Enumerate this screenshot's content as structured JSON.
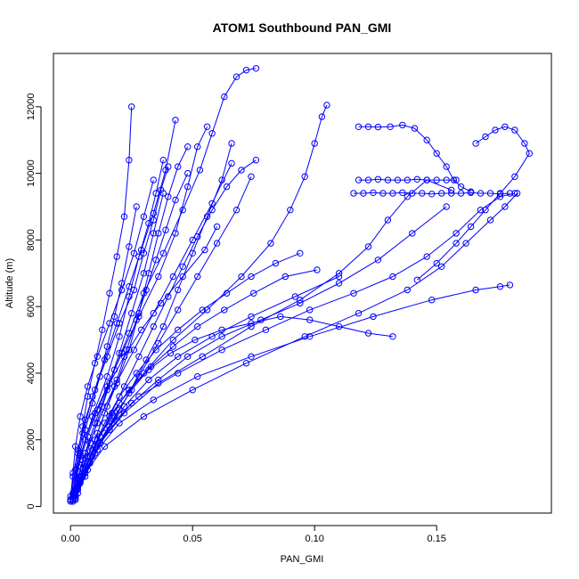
{
  "chart_data": {
    "type": "scatter",
    "title": "ATOM1 Southbound PAN_GMI",
    "xlabel": "PAN_GMI",
    "ylabel": "Altitude (m)",
    "xlim": [
      -0.007,
      0.197
    ],
    "ylim": [
      -200,
      13600
    ],
    "xticks": [
      0.0,
      0.05,
      0.1,
      0.15
    ],
    "xtick_labels": [
      "0.00",
      "0.05",
      "0.10",
      "0.15"
    ],
    "yticks": [
      0,
      2000,
      4000,
      6000,
      8000,
      10000,
      12000
    ],
    "ytick_labels": [
      "0",
      "2000",
      "4000",
      "6000",
      "8000",
      "10000",
      "12000"
    ],
    "grid": false,
    "color": "#0000ff",
    "marker": "open-circle",
    "series": [
      {
        "x": [
          0.0,
          0.002,
          0.003,
          0.005,
          0.007,
          0.01,
          0.013,
          0.016,
          0.019,
          0.022,
          0.024,
          0.025
        ],
        "y": [
          200,
          800,
          1600,
          2400,
          3300,
          4300,
          5300,
          6400,
          7500,
          8700,
          10400,
          12000
        ]
      },
      {
        "x": [
          0.001,
          0.003,
          0.006,
          0.01,
          0.015,
          0.021,
          0.028,
          0.036,
          0.043,
          0.048,
          0.052,
          0.056
        ],
        "y": [
          300,
          1200,
          2000,
          2800,
          3600,
          4600,
          5700,
          6900,
          8200,
          9600,
          10800,
          11400
        ]
      },
      {
        "x": [
          0.001,
          0.004,
          0.008,
          0.013,
          0.018,
          0.024,
          0.03,
          0.038,
          0.046,
          0.053,
          0.058,
          0.063,
          0.068,
          0.072,
          0.076
        ],
        "y": [
          200,
          900,
          1900,
          3000,
          4100,
          5200,
          6400,
          7600,
          8900,
          10100,
          11200,
          12300,
          12900,
          13100,
          13150
        ]
      },
      {
        "x": [
          0.002,
          0.006,
          0.012,
          0.02,
          0.03,
          0.042,
          0.056,
          0.07,
          0.082,
          0.09,
          0.096,
          0.1,
          0.103,
          0.105
        ],
        "y": [
          300,
          1100,
          2100,
          3100,
          4000,
          5000,
          5900,
          6900,
          7900,
          8900,
          9900,
          10900,
          11700,
          12050
        ]
      },
      {
        "x": [
          0.002,
          0.008,
          0.016,
          0.028,
          0.044,
          0.062,
          0.08,
          0.098,
          0.116,
          0.132,
          0.146,
          0.158,
          0.168,
          0.176,
          0.182
        ],
        "y": [
          500,
          1500,
          2400,
          3300,
          4000,
          4700,
          5300,
          5900,
          6400,
          6900,
          7500,
          8200,
          8900,
          9300,
          9400
        ]
      },
      {
        "x": [
          0.003,
          0.01,
          0.02,
          0.034,
          0.052,
          0.074,
          0.098,
          0.124,
          0.148,
          0.166,
          0.176,
          0.18
        ],
        "y": [
          600,
          1600,
          2500,
          3200,
          3900,
          4500,
          5100,
          5700,
          6200,
          6500,
          6600,
          6650
        ]
      },
      {
        "x": [
          0.004,
          0.014,
          0.03,
          0.05,
          0.072,
          0.096,
          0.118,
          0.138,
          0.152,
          0.162,
          0.172,
          0.178,
          0.183
        ],
        "y": [
          800,
          1800,
          2700,
          3500,
          4300,
          5100,
          5800,
          6500,
          7200,
          7900,
          8600,
          9000,
          9400
        ]
      },
      {
        "x": [
          0.005,
          0.012,
          0.022,
          0.036,
          0.054,
          0.074,
          0.094,
          0.11,
          0.122,
          0.13,
          0.138,
          0.146,
          0.156
        ],
        "y": [
          900,
          1900,
          2800,
          3700,
          4500,
          5400,
          6200,
          7000,
          7800,
          8600,
          9300,
          9800,
          9500
        ]
      },
      {
        "x": [
          0.116,
          0.12,
          0.124,
          0.128,
          0.132,
          0.136,
          0.14,
          0.144,
          0.148,
          0.152,
          0.156,
          0.16,
          0.164,
          0.168,
          0.172,
          0.176,
          0.18
        ],
        "y": [
          9400,
          9400,
          9420,
          9400,
          9400,
          9420,
          9400,
          9400,
          9380,
          9400,
          9400,
          9400,
          9420,
          9400,
          9400,
          9380,
          9400
        ]
      },
      {
        "x": [
          0.118,
          0.122,
          0.126,
          0.13,
          0.134,
          0.138,
          0.142,
          0.146,
          0.15,
          0.154,
          0.158
        ],
        "y": [
          9800,
          9800,
          9820,
          9800,
          9800,
          9800,
          9820,
          9800,
          9800,
          9800,
          9800
        ]
      },
      {
        "x": [
          0.118,
          0.122,
          0.126,
          0.131,
          0.136,
          0.141,
          0.146,
          0.15,
          0.154,
          0.157,
          0.16,
          0.164
        ],
        "y": [
          11400,
          11400,
          11390,
          11400,
          11450,
          11350,
          11000,
          10600,
          10200,
          9800,
          9600,
          9450
        ]
      },
      {
        "x": [
          0.166,
          0.17,
          0.174,
          0.178,
          0.182,
          0.186,
          0.188,
          0.182,
          0.176,
          0.17,
          0.164,
          0.158,
          0.15,
          0.142
        ],
        "y": [
          10900,
          11100,
          11300,
          11400,
          11300,
          10900,
          10600,
          9900,
          9400,
          8900,
          8400,
          7900,
          7300,
          6800
        ]
      },
      {
        "x": [
          0.001,
          0.004,
          0.009,
          0.015,
          0.02,
          0.024,
          0.028,
          0.032,
          0.035,
          0.038
        ],
        "y": [
          400,
          1500,
          2700,
          3900,
          5100,
          6300,
          7500,
          8500,
          9400,
          10400
        ]
      },
      {
        "x": [
          0.0,
          0.002,
          0.005,
          0.009,
          0.014,
          0.019,
          0.024,
          0.029,
          0.034,
          0.039,
          0.043
        ],
        "y": [
          200,
          1100,
          2200,
          3300,
          4400,
          5500,
          6600,
          7700,
          8800,
          10100,
          11600
        ]
      },
      {
        "x": [
          0.001,
          0.005,
          0.011,
          0.018,
          0.026,
          0.034,
          0.042,
          0.05,
          0.058,
          0.066
        ],
        "y": [
          300,
          1400,
          2500,
          3600,
          4700,
          5800,
          6900,
          8000,
          9100,
          10300
        ]
      },
      {
        "x": [
          0.002,
          0.006,
          0.012,
          0.02,
          0.028,
          0.036,
          0.044,
          0.052,
          0.06,
          0.068,
          0.074
        ],
        "y": [
          250,
          1000,
          1900,
          2900,
          3900,
          4900,
          5900,
          6900,
          7900,
          8900,
          9900
        ]
      },
      {
        "x": [
          0.0,
          0.001,
          0.003,
          0.006,
          0.01,
          0.015,
          0.02,
          0.026,
          0.03,
          0.034,
          0.037,
          0.04
        ],
        "y": [
          300,
          900,
          1700,
          2600,
          3500,
          4500,
          5500,
          6500,
          7600,
          8600,
          9500,
          10200
        ]
      },
      {
        "x": [
          0.003,
          0.008,
          0.014,
          0.022,
          0.032,
          0.044,
          0.058,
          0.074,
          0.092,
          0.11
        ],
        "y": [
          500,
          1300,
          2200,
          3000,
          3800,
          4500,
          5100,
          5700,
          6300,
          6900
        ]
      },
      {
        "x": [
          0.002,
          0.006,
          0.011,
          0.017,
          0.024,
          0.031,
          0.038,
          0.044,
          0.05,
          0.056,
          0.062,
          0.066
        ],
        "y": [
          200,
          900,
          1700,
          2500,
          3400,
          4400,
          5400,
          6500,
          7600,
          8700,
          9800,
          10900
        ]
      },
      {
        "x": [
          0.001,
          0.003,
          0.006,
          0.01,
          0.015,
          0.02,
          0.025,
          0.03,
          0.034,
          0.038
        ],
        "y": [
          150,
          800,
          1600,
          2500,
          3500,
          4600,
          5800,
          7000,
          8200,
          9400
        ]
      },
      {
        "x": [
          0.004,
          0.009,
          0.016,
          0.025,
          0.036,
          0.048,
          0.062,
          0.078,
          0.094,
          0.11,
          0.126,
          0.14,
          0.154
        ],
        "y": [
          700,
          1500,
          2300,
          3100,
          3800,
          4500,
          5100,
          5600,
          6100,
          6700,
          7400,
          8200,
          9000
        ]
      },
      {
        "x": [
          0.0,
          0.001,
          0.002,
          0.004,
          0.007,
          0.011,
          0.016,
          0.021,
          0.026,
          0.03,
          0.034
        ],
        "y": [
          200,
          1000,
          1800,
          2700,
          3600,
          4500,
          5500,
          6500,
          7600,
          8700,
          9800
        ]
      },
      {
        "x": [
          0.005,
          0.01,
          0.016,
          0.022,
          0.028,
          0.034,
          0.04,
          0.046,
          0.052,
          0.058,
          0.064,
          0.07,
          0.076
        ],
        "y": [
          1000,
          1800,
          2700,
          3600,
          4500,
          5400,
          6300,
          7200,
          8100,
          8900,
          9600,
          10100,
          10400
        ]
      },
      {
        "x": [
          0.002,
          0.004,
          0.007,
          0.011,
          0.015,
          0.019,
          0.023,
          0.027,
          0.031,
          0.035,
          0.039,
          0.043,
          0.048
        ],
        "y": [
          300,
          900,
          1500,
          2200,
          3000,
          3800,
          4700,
          5600,
          6500,
          7400,
          8300,
          9200,
          10000
        ]
      },
      {
        "x": [
          0.001,
          0.002,
          0.004,
          0.006,
          0.009,
          0.012,
          0.015,
          0.018,
          0.021,
          0.024,
          0.027
        ],
        "y": [
          250,
          900,
          1600,
          2300,
          3100,
          3900,
          4800,
          5700,
          6700,
          7800,
          9000
        ]
      },
      {
        "x": [
          0.003,
          0.007,
          0.012,
          0.018,
          0.025,
          0.033,
          0.042,
          0.052,
          0.063,
          0.075,
          0.088,
          0.101
        ],
        "y": [
          400,
          1100,
          1900,
          2700,
          3500,
          4200,
          4800,
          5400,
          5900,
          6400,
          6900,
          7100
        ]
      },
      {
        "x": [
          0.0,
          0.002,
          0.004,
          0.007,
          0.011,
          0.016,
          0.022,
          0.029,
          0.037,
          0.046,
          0.055,
          0.06
        ],
        "y": [
          150,
          700,
          1400,
          2100,
          2900,
          3700,
          4500,
          5300,
          6100,
          6900,
          7700,
          8400
        ]
      },
      {
        "x": [
          0.006,
          0.011,
          0.017,
          0.024,
          0.032,
          0.041,
          0.051,
          0.062,
          0.074,
          0.086,
          0.098,
          0.11,
          0.122,
          0.132
        ],
        "y": [
          1200,
          2000,
          2800,
          3500,
          4100,
          4600,
          5000,
          5300,
          5500,
          5700,
          5600,
          5400,
          5200,
          5100
        ]
      },
      {
        "x": [
          0.001,
          0.003,
          0.006,
          0.01,
          0.014,
          0.019,
          0.024,
          0.028,
          0.032,
          0.036,
          0.04,
          0.044,
          0.048
        ],
        "y": [
          200,
          700,
          1300,
          2000,
          2800,
          3700,
          4700,
          5800,
          7000,
          8200,
          9300,
          10200,
          10800
        ]
      },
      {
        "x": [
          0.002,
          0.005,
          0.009,
          0.014,
          0.02,
          0.027,
          0.035,
          0.044,
          0.054,
          0.064,
          0.074,
          0.084,
          0.094
        ],
        "y": [
          350,
          1000,
          1700,
          2500,
          3300,
          4000,
          4700,
          5300,
          5900,
          6400,
          6900,
          7300,
          7600
        ]
      }
    ]
  }
}
